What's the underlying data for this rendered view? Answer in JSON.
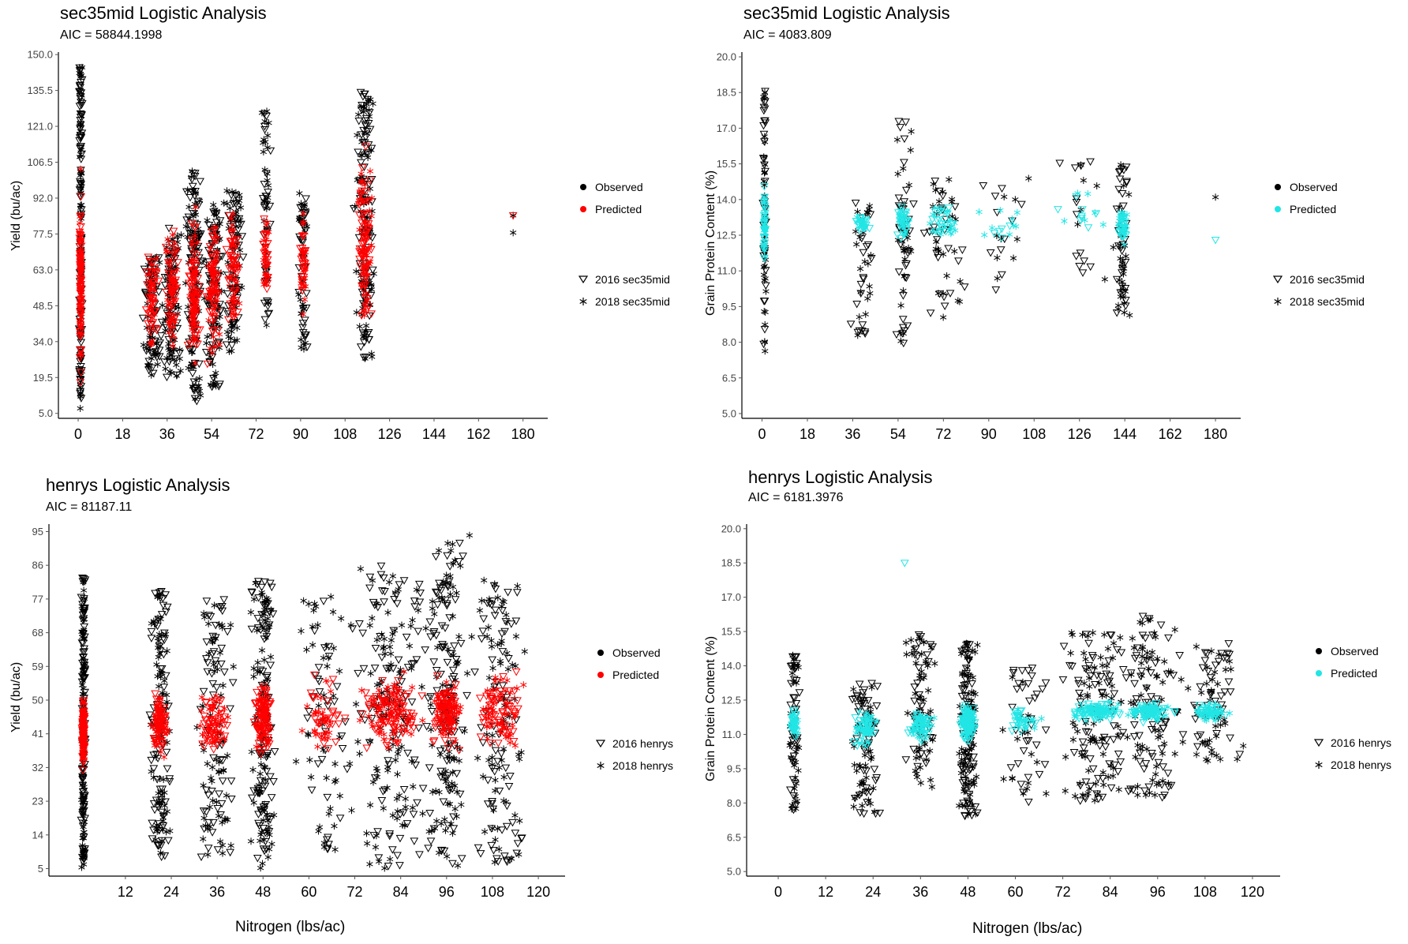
{
  "panels": [
    {
      "title": "sec35mid Logistic Analysis",
      "subtitle": "AIC = 58844.1998",
      "ylabel": "Yield (bu/ac)",
      "xlabel": "",
      "legend": {
        "observed": "Observed",
        "predicted": "Predicted",
        "year1": "2016 sec35mid",
        "year2": "2018 sec35mid"
      }
    },
    {
      "title": "sec35mid Logistic Analysis",
      "subtitle": "AIC = 4083.809",
      "ylabel": "Grain Protein Content (%)",
      "xlabel": "",
      "legend": {
        "observed": "Observed",
        "predicted": "Predicted",
        "year1": "2016 sec35mid",
        "year2": "2018 sec35mid"
      }
    },
    {
      "title": "henrys Logistic Analysis",
      "subtitle": "AIC = 81187.11",
      "ylabel": "Yield (bu/ac)",
      "xlabel": "Nitrogen (lbs/ac)",
      "legend": {
        "observed": "Observed",
        "predicted": "Predicted",
        "year1": "2016 henrys",
        "year2": "2018 henrys"
      }
    },
    {
      "title": "henrys Logistic Analysis",
      "subtitle": "AIC = 6181.3976",
      "ylabel": "Grain Protein Content (%)",
      "xlabel": "Nitrogen (lbs/ac)",
      "legend": {
        "observed": "Observed",
        "predicted": "Predicted",
        "year1": "2016 henrys",
        "year2": "2018 henrys"
      }
    }
  ],
  "chart_data": [
    {
      "type": "scatter",
      "title": "sec35mid Logistic Analysis",
      "subtitle": "AIC = 58844.1998",
      "xlabel": "",
      "ylabel": "Yield (bu/ac)",
      "xlim": [
        -8,
        190
      ],
      "ylim": [
        3,
        151
      ],
      "xticks": [
        0,
        18,
        36,
        54,
        72,
        90,
        108,
        126,
        144,
        162,
        180
      ],
      "yticks": [
        "5.0",
        "19.5",
        "34.0",
        "48.5",
        "63.0",
        "77.5",
        "92.0",
        "106.5",
        "121.0",
        "135.5",
        "150.0"
      ],
      "predicted_color": "#ff0000",
      "observed_color": "#000000",
      "legend_position": "right",
      "grid": false,
      "clusters": [
        {
          "x": 1,
          "xs": 0.5,
          "obs": [
            7,
            145
          ],
          "pred": [
            12,
            105
          ],
          "n": 170
        },
        {
          "x": 30,
          "xs": 3,
          "obs": [
            20,
            70
          ],
          "pred": [
            25,
            80
          ],
          "n": 90
        },
        {
          "x": 38,
          "xs": 3,
          "obs": [
            18,
            80
          ],
          "pred": [
            25,
            85
          ],
          "n": 110
        },
        {
          "x": 47,
          "xs": 2.5,
          "obs": [
            10,
            105
          ],
          "pred": [
            15,
            95
          ],
          "n": 150
        },
        {
          "x": 55,
          "xs": 3,
          "obs": [
            15,
            90
          ],
          "pred": [
            20,
            95
          ],
          "n": 120
        },
        {
          "x": 63,
          "xs": 3,
          "obs": [
            30,
            95
          ],
          "pred": [
            30,
            100
          ],
          "n": 100
        },
        {
          "x": 76,
          "xs": 1.5,
          "obs": [
            40,
            128
          ],
          "pred": [
            50,
            90
          ],
          "n": 60
        },
        {
          "x": 91,
          "xs": 1.5,
          "obs": [
            30,
            95
          ],
          "pred": [
            40,
            90
          ],
          "n": 60
        },
        {
          "x": 116,
          "xs": 3,
          "obs": [
            25,
            135
          ],
          "pred": [
            30,
            120
          ],
          "n": 160
        }
      ],
      "outliers_observed": [
        [
          176,
          78
        ],
        [
          176,
          85
        ]
      ],
      "outliers_predicted": [
        [
          176,
          85
        ]
      ]
    },
    {
      "type": "scatter",
      "title": "sec35mid Logistic Analysis",
      "subtitle": "AIC = 4083.809",
      "xlabel": "",
      "ylabel": "Grain Protein Content (%)",
      "xlim": [
        -8,
        190
      ],
      "ylim": [
        4.8,
        20.2
      ],
      "xticks": [
        0,
        18,
        36,
        54,
        72,
        90,
        108,
        126,
        144,
        162,
        180
      ],
      "yticks": [
        "5.0",
        "6.5",
        "8.0",
        "9.5",
        "11.0",
        "12.5",
        "14.0",
        "15.5",
        "17.0",
        "18.5",
        "20.0"
      ],
      "predicted_color": "#22e5e5",
      "observed_color": "#000000",
      "legend_position": "right",
      "grid": false,
      "clusters": [
        {
          "x": 1,
          "xs": 0.5,
          "obs": [
            7.5,
            18.7
          ],
          "pred": [
            10.5,
            15
          ],
          "n": 70
        },
        {
          "x": 40,
          "xs": 4,
          "obs": [
            8,
            14
          ],
          "pred": [
            12.5,
            13.5
          ],
          "n": 40
        },
        {
          "x": 56,
          "xs": 3,
          "obs": [
            7.8,
            17.5
          ],
          "pred": [
            12,
            14
          ],
          "n": 60
        },
        {
          "x": 72,
          "xs": 6,
          "obs": [
            9,
            15
          ],
          "pred": [
            12,
            14
          ],
          "n": 50
        },
        {
          "x": 96,
          "xs": 10,
          "obs": [
            10,
            15
          ],
          "pred": [
            12,
            14
          ],
          "n": 20
        },
        {
          "x": 128,
          "xs": 10,
          "obs": [
            10.5,
            16
          ],
          "pred": [
            12,
            14.5
          ],
          "n": 20
        },
        {
          "x": 143,
          "xs": 2,
          "obs": [
            8.8,
            15.5
          ],
          "pred": [
            12,
            14
          ],
          "n": 60
        }
      ],
      "outliers_observed": [
        [
          180,
          14.1
        ]
      ],
      "outliers_predicted": [
        [
          180,
          12.3
        ]
      ]
    },
    {
      "type": "scatter",
      "title": "henrys Logistic Analysis",
      "subtitle": "AIC = 81187.11",
      "xlabel": "Nitrogen (lbs/ac)",
      "ylabel": "Yield (bu/ac)",
      "xlim": [
        -8,
        127
      ],
      "ylim": [
        3,
        97
      ],
      "xticks": [
        12,
        24,
        36,
        48,
        60,
        72,
        84,
        96,
        108,
        120
      ],
      "yticks": [
        "5",
        "14",
        "23",
        "32",
        "41",
        "50",
        "59",
        "68",
        "77",
        "86",
        "95"
      ],
      "predicted_color": "#ff0000",
      "observed_color": "#000000",
      "legend_position": "right",
      "grid": false,
      "clusters": [
        {
          "x": 1,
          "xs": 0.4,
          "obs": [
            5,
            83
          ],
          "pred": [
            30,
            54
          ],
          "n": 180
        },
        {
          "x": 21,
          "xs": 2,
          "obs": [
            8,
            80
          ],
          "pred": [
            32,
            55
          ],
          "n": 150
        },
        {
          "x": 35,
          "xs": 4,
          "obs": [
            8,
            78
          ],
          "pred": [
            32,
            56
          ],
          "n": 120
        },
        {
          "x": 48,
          "xs": 2.5,
          "obs": [
            5,
            82
          ],
          "pred": [
            33,
            58
          ],
          "n": 170
        },
        {
          "x": 64,
          "xs": 6,
          "obs": [
            10,
            78
          ],
          "pred": [
            34,
            58
          ],
          "n": 80
        },
        {
          "x": 82,
          "xs": 8,
          "obs": [
            5,
            86
          ],
          "pred": [
            34,
            59
          ],
          "n": 200
        },
        {
          "x": 96,
          "xs": 4,
          "obs": [
            5,
            92
          ],
          "pred": [
            34,
            59
          ],
          "n": 180
        },
        {
          "x": 110,
          "xs": 6,
          "obs": [
            5,
            82
          ],
          "pred": [
            34,
            60
          ],
          "n": 140
        }
      ],
      "outliers_observed": [
        [
          102,
          94
        ]
      ],
      "outliers_predicted": []
    },
    {
      "type": "scatter",
      "title": "henrys Logistic Analysis",
      "subtitle": "AIC = 6181.3976",
      "xlabel": "Nitrogen (lbs/ac)",
      "ylabel": "Grain Protein Content (%)",
      "xlim": [
        -8,
        127
      ],
      "ylim": [
        4.8,
        20.2
      ],
      "xticks": [
        0,
        12,
        24,
        36,
        48,
        60,
        72,
        84,
        96,
        108,
        120
      ],
      "yticks": [
        "5.0",
        "6.5",
        "8.0",
        "9.5",
        "11.0",
        "12.5",
        "14.0",
        "15.5",
        "17.0",
        "18.5",
        "20.0"
      ],
      "predicted_color": "#22e5e5",
      "observed_color": "#000000",
      "legend_position": "right",
      "grid": false,
      "clusters": [
        {
          "x": 4,
          "xs": 1,
          "obs": [
            7.7,
            14.5
          ],
          "pred": [
            10.5,
            12.5
          ],
          "n": 70
        },
        {
          "x": 22,
          "xs": 3,
          "obs": [
            7.2,
            13.5
          ],
          "pred": [
            10.3,
            12.3
          ],
          "n": 90
        },
        {
          "x": 36,
          "xs": 3,
          "obs": [
            8.5,
            15.5
          ],
          "pred": [
            10.5,
            12.3
          ],
          "n": 90
        },
        {
          "x": 48,
          "xs": 2,
          "obs": [
            7.4,
            15
          ],
          "pred": [
            10.5,
            12.5
          ],
          "n": 150
        },
        {
          "x": 62,
          "xs": 5,
          "obs": [
            8,
            14
          ],
          "pred": [
            11,
            12.3
          ],
          "n": 50
        },
        {
          "x": 80,
          "xs": 7,
          "obs": [
            7.8,
            15.5
          ],
          "pred": [
            11.5,
            12.5
          ],
          "n": 140
        },
        {
          "x": 94,
          "xs": 6,
          "obs": [
            8.2,
            16.2
          ],
          "pred": [
            11.5,
            12.5
          ],
          "n": 130
        },
        {
          "x": 110,
          "xs": 6,
          "obs": [
            9.5,
            15
          ],
          "pred": [
            11.5,
            12.5
          ],
          "n": 80
        }
      ],
      "outliers_observed": [],
      "outliers_predicted": [
        [
          32,
          18.5
        ]
      ]
    }
  ]
}
